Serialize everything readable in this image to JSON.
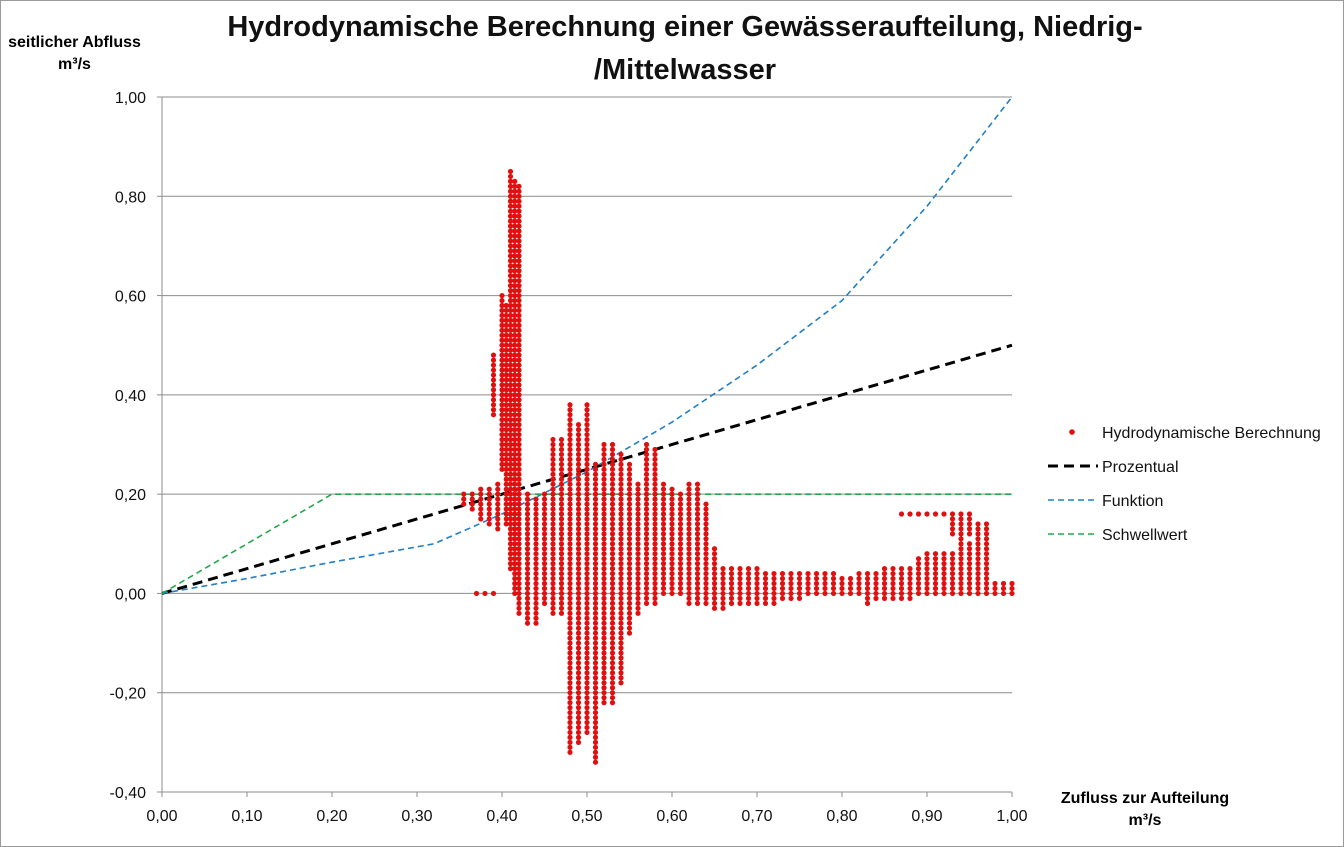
{
  "chart_data": {
    "type": "scatter",
    "title_lines": [
      "Hydrodynamische Berechnung einer Gewässeraufteilung, Niedrig-",
      "/Mittelwasser"
    ],
    "ylabel_lines": [
      "seitlicher Abfluss",
      "m³/s"
    ],
    "xlabel_lines": [
      "Zufluss zur Aufteilung",
      "m³/s"
    ],
    "xlim": [
      0,
      1
    ],
    "ylim": [
      -0.4,
      1
    ],
    "xticks": [
      0,
      0.1,
      0.2,
      0.3,
      0.4,
      0.5,
      0.6,
      0.7,
      0.8,
      0.9,
      1.0
    ],
    "yticks": [
      -0.4,
      -0.2,
      0,
      0.2,
      0.4,
      0.6,
      0.8,
      1.0
    ],
    "xtick_labels": [
      "0,00",
      "0,10",
      "0,20",
      "0,30",
      "0,40",
      "0,50",
      "0,60",
      "0,70",
      "0,80",
      "0,90",
      "1,00"
    ],
    "ytick_labels": [
      "-0,40",
      "-0,20",
      "0,00",
      "0,20",
      "0,40",
      "0,60",
      "0,80",
      "1,00"
    ],
    "grid": "horizontal",
    "legend_position": "right",
    "series": [
      {
        "name": "Hydrodynamische Berechnung",
        "style": "markers",
        "color": "#e01010",
        "segments": [
          {
            "x": 0.37,
            "y_from": 0.0,
            "y_to": 0.0
          },
          {
            "x": 0.38,
            "y_from": 0.0,
            "y_to": 0.0
          },
          {
            "x": 0.39,
            "y_from": 0.0,
            "y_to": 0.0
          },
          {
            "x": 0.355,
            "y_from": 0.18,
            "y_to": 0.2
          },
          {
            "x": 0.365,
            "y_from": 0.17,
            "y_to": 0.2
          },
          {
            "x": 0.375,
            "y_from": 0.15,
            "y_to": 0.21
          },
          {
            "x": 0.385,
            "y_from": 0.14,
            "y_to": 0.21
          },
          {
            "x": 0.395,
            "y_from": 0.13,
            "y_to": 0.22
          },
          {
            "x": 0.39,
            "y_from": 0.36,
            "y_to": 0.48
          },
          {
            "x": 0.4,
            "y_from": 0.25,
            "y_to": 0.6
          },
          {
            "x": 0.405,
            "y_from": 0.14,
            "y_to": 0.58
          },
          {
            "x": 0.41,
            "y_from": 0.05,
            "y_to": 0.85
          },
          {
            "x": 0.415,
            "y_from": 0.0,
            "y_to": 0.83
          },
          {
            "x": 0.42,
            "y_from": -0.04,
            "y_to": 0.82
          },
          {
            "x": 0.43,
            "y_from": -0.06,
            "y_to": 0.2
          },
          {
            "x": 0.44,
            "y_from": -0.06,
            "y_to": 0.19
          },
          {
            "x": 0.45,
            "y_from": -0.02,
            "y_to": 0.2
          },
          {
            "x": 0.46,
            "y_from": -0.04,
            "y_to": 0.31
          },
          {
            "x": 0.47,
            "y_from": -0.04,
            "y_to": 0.31
          },
          {
            "x": 0.48,
            "y_from": -0.32,
            "y_to": 0.38
          },
          {
            "x": 0.49,
            "y_from": -0.3,
            "y_to": 0.34
          },
          {
            "x": 0.5,
            "y_from": -0.28,
            "y_to": 0.38
          },
          {
            "x": 0.51,
            "y_from": -0.34,
            "y_to": 0.26
          },
          {
            "x": 0.52,
            "y_from": -0.22,
            "y_to": 0.3
          },
          {
            "x": 0.53,
            "y_from": -0.22,
            "y_to": 0.3
          },
          {
            "x": 0.54,
            "y_from": -0.18,
            "y_to": 0.28
          },
          {
            "x": 0.55,
            "y_from": -0.08,
            "y_to": 0.26
          },
          {
            "x": 0.56,
            "y_from": -0.04,
            "y_to": 0.22
          },
          {
            "x": 0.57,
            "y_from": -0.02,
            "y_to": 0.3
          },
          {
            "x": 0.58,
            "y_from": -0.02,
            "y_to": 0.29
          },
          {
            "x": 0.59,
            "y_from": 0.0,
            "y_to": 0.22
          },
          {
            "x": 0.6,
            "y_from": 0.0,
            "y_to": 0.21
          },
          {
            "x": 0.61,
            "y_from": 0.0,
            "y_to": 0.2
          },
          {
            "x": 0.62,
            "y_from": -0.02,
            "y_to": 0.22
          },
          {
            "x": 0.63,
            "y_from": -0.02,
            "y_to": 0.22
          },
          {
            "x": 0.64,
            "y_from": -0.02,
            "y_to": 0.18
          },
          {
            "x": 0.65,
            "y_from": -0.03,
            "y_to": 0.09
          },
          {
            "x": 0.66,
            "y_from": -0.03,
            "y_to": 0.05
          },
          {
            "x": 0.67,
            "y_from": -0.02,
            "y_to": 0.05
          },
          {
            "x": 0.68,
            "y_from": -0.02,
            "y_to": 0.05
          },
          {
            "x": 0.69,
            "y_from": -0.02,
            "y_to": 0.05
          },
          {
            "x": 0.7,
            "y_from": -0.02,
            "y_to": 0.05
          },
          {
            "x": 0.71,
            "y_from": -0.02,
            "y_to": 0.04
          },
          {
            "x": 0.72,
            "y_from": -0.02,
            "y_to": 0.04
          },
          {
            "x": 0.73,
            "y_from": -0.01,
            "y_to": 0.04
          },
          {
            "x": 0.74,
            "y_from": -0.01,
            "y_to": 0.04
          },
          {
            "x": 0.75,
            "y_from": -0.01,
            "y_to": 0.04
          },
          {
            "x": 0.76,
            "y_from": 0.0,
            "y_to": 0.04
          },
          {
            "x": 0.77,
            "y_from": 0.0,
            "y_to": 0.04
          },
          {
            "x": 0.78,
            "y_from": 0.0,
            "y_to": 0.04
          },
          {
            "x": 0.79,
            "y_from": 0.0,
            "y_to": 0.04
          },
          {
            "x": 0.8,
            "y_from": 0.0,
            "y_to": 0.03
          },
          {
            "x": 0.81,
            "y_from": 0.0,
            "y_to": 0.03
          },
          {
            "x": 0.82,
            "y_from": 0.0,
            "y_to": 0.04
          },
          {
            "x": 0.83,
            "y_from": -0.02,
            "y_to": 0.04
          },
          {
            "x": 0.84,
            "y_from": -0.01,
            "y_to": 0.04
          },
          {
            "x": 0.85,
            "y_from": -0.01,
            "y_to": 0.05
          },
          {
            "x": 0.86,
            "y_from": -0.01,
            "y_to": 0.05
          },
          {
            "x": 0.87,
            "y_from": -0.01,
            "y_to": 0.05
          },
          {
            "x": 0.88,
            "y_from": -0.01,
            "y_to": 0.05
          },
          {
            "x": 0.89,
            "y_from": 0.0,
            "y_to": 0.07
          },
          {
            "x": 0.9,
            "y_from": 0.0,
            "y_to": 0.08
          },
          {
            "x": 0.91,
            "y_from": 0.0,
            "y_to": 0.08
          },
          {
            "x": 0.92,
            "y_from": 0.0,
            "y_to": 0.08
          },
          {
            "x": 0.93,
            "y_from": 0.0,
            "y_to": 0.08
          },
          {
            "x": 0.94,
            "y_from": 0.0,
            "y_to": 0.09
          },
          {
            "x": 0.95,
            "y_from": 0.0,
            "y_to": 0.1
          },
          {
            "x": 0.96,
            "y_from": 0.0,
            "y_to": 0.14
          },
          {
            "x": 0.97,
            "y_from": 0.0,
            "y_to": 0.14
          },
          {
            "x": 0.98,
            "y_from": 0.0,
            "y_to": 0.02
          },
          {
            "x": 0.99,
            "y_from": 0.0,
            "y_to": 0.02
          },
          {
            "x": 1.0,
            "y_from": 0.0,
            "y_to": 0.02
          },
          {
            "x": 0.87,
            "y_from": 0.16,
            "y_to": 0.16
          },
          {
            "x": 0.88,
            "y_from": 0.16,
            "y_to": 0.16
          },
          {
            "x": 0.89,
            "y_from": 0.16,
            "y_to": 0.16
          },
          {
            "x": 0.9,
            "y_from": 0.16,
            "y_to": 0.16
          },
          {
            "x": 0.91,
            "y_from": 0.16,
            "y_to": 0.16
          },
          {
            "x": 0.92,
            "y_from": 0.16,
            "y_to": 0.16
          },
          {
            "x": 0.93,
            "y_from": 0.12,
            "y_to": 0.16
          },
          {
            "x": 0.94,
            "y_from": 0.1,
            "y_to": 0.16
          },
          {
            "x": 0.95,
            "y_from": 0.12,
            "y_to": 0.16
          }
        ]
      },
      {
        "name": "Prozentual",
        "style": "dashed",
        "color": "#000000",
        "points": [
          [
            0,
            0
          ],
          [
            1.0,
            0.5
          ]
        ]
      },
      {
        "name": "Funktion",
        "style": "dashed",
        "color": "#1f7fc8",
        "points": [
          [
            0,
            0
          ],
          [
            0.1,
            0.03
          ],
          [
            0.2,
            0.063
          ],
          [
            0.32,
            0.1
          ],
          [
            0.4,
            0.16
          ],
          [
            0.5,
            0.245
          ],
          [
            0.6,
            0.345
          ],
          [
            0.7,
            0.46
          ],
          [
            0.8,
            0.59
          ],
          [
            0.9,
            0.78
          ],
          [
            1.0,
            1.0
          ]
        ]
      },
      {
        "name": "Schwellwert",
        "style": "dashed",
        "color": "#22a84a",
        "points": [
          [
            0,
            0
          ],
          [
            0.2,
            0.2
          ],
          [
            1.0,
            0.2
          ]
        ]
      }
    ]
  }
}
